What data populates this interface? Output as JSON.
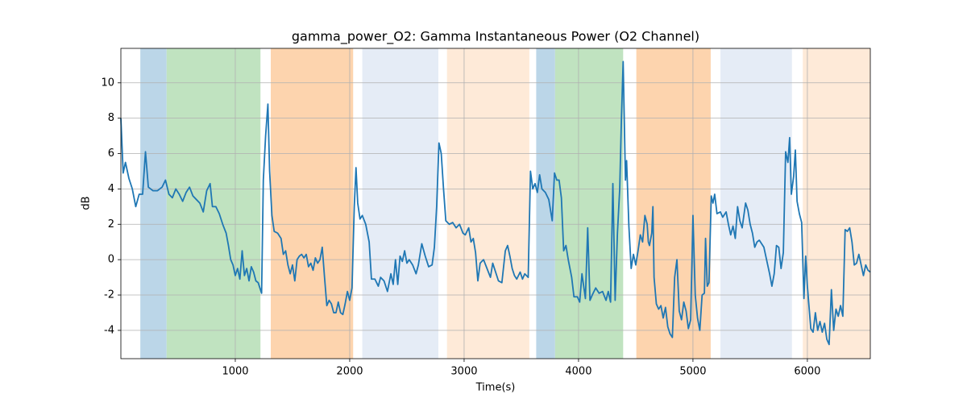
{
  "chart_data": {
    "type": "line",
    "title": "gamma_power_O2: Gamma Instantaneous Power (O2 Channel)",
    "x_label": "Time(s)",
    "y_label": "dB",
    "color": "#1f77b4",
    "grid": true,
    "xlim": [
      0,
      6550
    ],
    "ylim": [
      -5.6,
      11.95
    ],
    "xticks": [
      1000,
      2000,
      3000,
      4000,
      5000,
      6000
    ],
    "yticks": [
      -4,
      -2,
      0,
      2,
      4,
      6,
      8,
      10
    ],
    "spans": [
      {
        "start": 170,
        "end": 400,
        "color": "#bbd6e8"
      },
      {
        "start": 400,
        "end": 1220,
        "color": "#c0e3c0"
      },
      {
        "start": 1310,
        "end": 2030,
        "color": "#fdd4ae"
      },
      {
        "start": 2110,
        "end": 2775,
        "color": "#e5ecf6"
      },
      {
        "start": 2850,
        "end": 3570,
        "color": "#feead8"
      },
      {
        "start": 3630,
        "end": 3795,
        "color": "#bbd6e8"
      },
      {
        "start": 3795,
        "end": 4390,
        "color": "#c0e3c0"
      },
      {
        "start": 4505,
        "end": 5155,
        "color": "#fdd4ae"
      },
      {
        "start": 5240,
        "end": 5865,
        "color": "#e5ecf6"
      },
      {
        "start": 5960,
        "end": 6550,
        "color": "#feead8"
      }
    ],
    "x": [
      0,
      20,
      40,
      70,
      100,
      130,
      160,
      190,
      215,
      240,
      280,
      320,
      360,
      390,
      420,
      450,
      480,
      510,
      540,
      570,
      600,
      630,
      660,
      690,
      720,
      750,
      780,
      800,
      830,
      860,
      890,
      920,
      940,
      960,
      980,
      1000,
      1020,
      1040,
      1060,
      1080,
      1100,
      1120,
      1140,
      1160,
      1180,
      1200,
      1230,
      1245,
      1265,
      1285,
      1300,
      1320,
      1340,
      1370,
      1400,
      1420,
      1440,
      1460,
      1480,
      1500,
      1520,
      1540,
      1560,
      1580,
      1600,
      1620,
      1640,
      1660,
      1680,
      1700,
      1720,
      1740,
      1760,
      1780,
      1800,
      1820,
      1840,
      1860,
      1880,
      1900,
      1920,
      1940,
      1960,
      1980,
      2000,
      2020,
      2040,
      2055,
      2070,
      2090,
      2110,
      2140,
      2170,
      2190,
      2220,
      2250,
      2270,
      2300,
      2330,
      2360,
      2380,
      2400,
      2420,
      2440,
      2460,
      2480,
      2500,
      2520,
      2550,
      2580,
      2600,
      2630,
      2660,
      2690,
      2720,
      2740,
      2760,
      2780,
      2800,
      2820,
      2840,
      2870,
      2900,
      2930,
      2960,
      2990,
      3010,
      3040,
      3060,
      3080,
      3100,
      3120,
      3140,
      3170,
      3200,
      3230,
      3250,
      3270,
      3300,
      3330,
      3360,
      3380,
      3400,
      3420,
      3440,
      3460,
      3490,
      3510,
      3530,
      3560,
      3580,
      3600,
      3620,
      3640,
      3660,
      3680,
      3710,
      3740,
      3770,
      3790,
      3810,
      3830,
      3850,
      3870,
      3890,
      3910,
      3940,
      3960,
      3990,
      4010,
      4030,
      4060,
      4080,
      4100,
      4120,
      4150,
      4180,
      4210,
      4240,
      4260,
      4280,
      4300,
      4320,
      4340,
      4360,
      4375,
      4390,
      4410,
      4420,
      4440,
      4460,
      4480,
      4500,
      4520,
      4540,
      4560,
      4580,
      4600,
      4610,
      4620,
      4640,
      4650,
      4660,
      4680,
      4700,
      4720,
      4740,
      4760,
      4780,
      4800,
      4820,
      4840,
      4860,
      4880,
      4900,
      4920,
      4940,
      4960,
      4980,
      5000,
      5020,
      5040,
      5060,
      5080,
      5100,
      5110,
      5125,
      5140,
      5160,
      5175,
      5190,
      5210,
      5240,
      5260,
      5290,
      5310,
      5330,
      5350,
      5370,
      5390,
      5410,
      5430,
      5460,
      5480,
      5500,
      5520,
      5540,
      5560,
      5580,
      5600,
      5620,
      5650,
      5670,
      5690,
      5710,
      5730,
      5750,
      5770,
      5790,
      5810,
      5830,
      5845,
      5860,
      5880,
      5895,
      5910,
      5930,
      5950,
      5970,
      5985,
      6000,
      6030,
      6050,
      6070,
      6090,
      6110,
      6130,
      6150,
      6170,
      6190,
      6210,
      6230,
      6250,
      6270,
      6290,
      6310,
      6330,
      6350,
      6370,
      6390,
      6410,
      6430,
      6450,
      6470,
      6490,
      6510,
      6530,
      6550
    ],
    "values": [
      8.0,
      4.9,
      5.5,
      4.6,
      4.0,
      3.0,
      3.7,
      3.7,
      6.1,
      4.1,
      3.9,
      3.9,
      4.1,
      4.5,
      3.7,
      3.5,
      4.0,
      3.7,
      3.3,
      3.8,
      4.1,
      3.6,
      3.4,
      3.2,
      2.7,
      3.9,
      4.3,
      3.0,
      3.0,
      2.6,
      2.0,
      1.5,
      0.8,
      0.0,
      -0.3,
      -0.9,
      -0.5,
      -1.1,
      0.5,
      -0.9,
      -0.5,
      -1.2,
      -0.4,
      -0.7,
      -1.2,
      -1.3,
      -1.9,
      4.5,
      7.0,
      8.8,
      5.0,
      2.5,
      1.6,
      1.5,
      1.2,
      0.3,
      0.5,
      -0.3,
      -0.8,
      -0.3,
      -1.2,
      0.0,
      0.2,
      0.3,
      0.1,
      0.3,
      -0.4,
      -0.2,
      -0.6,
      0.1,
      -0.2,
      0.0,
      0.7,
      -1.0,
      -2.6,
      -2.3,
      -2.5,
      -3.0,
      -3.0,
      -2.4,
      -3.0,
      -3.1,
      -2.5,
      -1.8,
      -2.3,
      -1.6,
      3.0,
      5.2,
      3.2,
      2.3,
      2.5,
      2.0,
      1.0,
      -1.1,
      -1.1,
      -1.5,
      -1.0,
      -1.2,
      -1.8,
      -0.8,
      -1.4,
      0.0,
      -1.4,
      0.2,
      -0.1,
      0.5,
      -0.2,
      0.0,
      -0.3,
      -0.8,
      -0.3,
      0.9,
      0.2,
      -0.4,
      -0.3,
      0.7,
      3.0,
      6.6,
      6.0,
      4.0,
      2.2,
      2.0,
      2.1,
      1.8,
      2.0,
      1.5,
      1.4,
      1.8,
      1.0,
      1.2,
      0.4,
      -1.2,
      -0.2,
      0.0,
      -0.5,
      -1.0,
      -0.2,
      -0.6,
      -1.2,
      -1.3,
      0.5,
      0.8,
      0.2,
      -0.5,
      -0.9,
      -1.1,
      -0.7,
      -1.1,
      -0.8,
      -1.0,
      5.0,
      4.0,
      4.3,
      3.8,
      4.8,
      4.0,
      3.8,
      3.4,
      2.2,
      4.9,
      4.5,
      4.5,
      3.5,
      0.5,
      0.8,
      0.0,
      -1.0,
      -2.1,
      -2.1,
      -2.4,
      -0.8,
      -2.2,
      1.8,
      -2.3,
      -2.0,
      -1.6,
      -1.9,
      -1.8,
      -2.3,
      -1.8,
      -2.4,
      4.3,
      -2.3,
      1.5,
      4.0,
      8.0,
      11.2,
      4.5,
      5.6,
      1.9,
      -0.5,
      0.3,
      -0.3,
      0.5,
      1.4,
      1.0,
      2.5,
      2.0,
      1.0,
      0.8,
      1.5,
      3.0,
      -1.0,
      -2.5,
      -2.8,
      -2.6,
      -3.3,
      -2.7,
      -3.8,
      -4.2,
      -4.4,
      -1.0,
      0.0,
      -2.9,
      -3.4,
      -2.4,
      -2.9,
      -3.9,
      -3.4,
      2.5,
      -2.0,
      -3.3,
      -4.0,
      -2.0,
      -1.9,
      1.2,
      -1.5,
      -1.3,
      3.6,
      3.2,
      3.7,
      2.6,
      2.7,
      2.4,
      2.7,
      2.0,
      1.4,
      1.9,
      1.2,
      3.0,
      2.2,
      1.8,
      3.2,
      2.8,
      2.0,
      1.5,
      0.7,
      1.0,
      1.1,
      0.9,
      0.7,
      -0.2,
      -0.8,
      -1.5,
      -0.8,
      0.8,
      0.7,
      -0.5,
      0.4,
      6.1,
      5.5,
      6.9,
      3.7,
      4.7,
      6.2,
      3.3,
      2.6,
      2.1,
      -2.2,
      0.2,
      -1.5,
      -3.9,
      -4.1,
      -3.0,
      -4.0,
      -3.5,
      -4.1,
      -3.6,
      -4.5,
      -4.8,
      -1.7,
      -4.0,
      -2.8,
      -3.2,
      -2.6,
      -3.2,
      1.7,
      1.6,
      1.8,
      1.0,
      -0.3,
      -0.2,
      0.3,
      -0.3,
      -0.9,
      -0.3,
      -0.6,
      -0.7
    ]
  }
}
